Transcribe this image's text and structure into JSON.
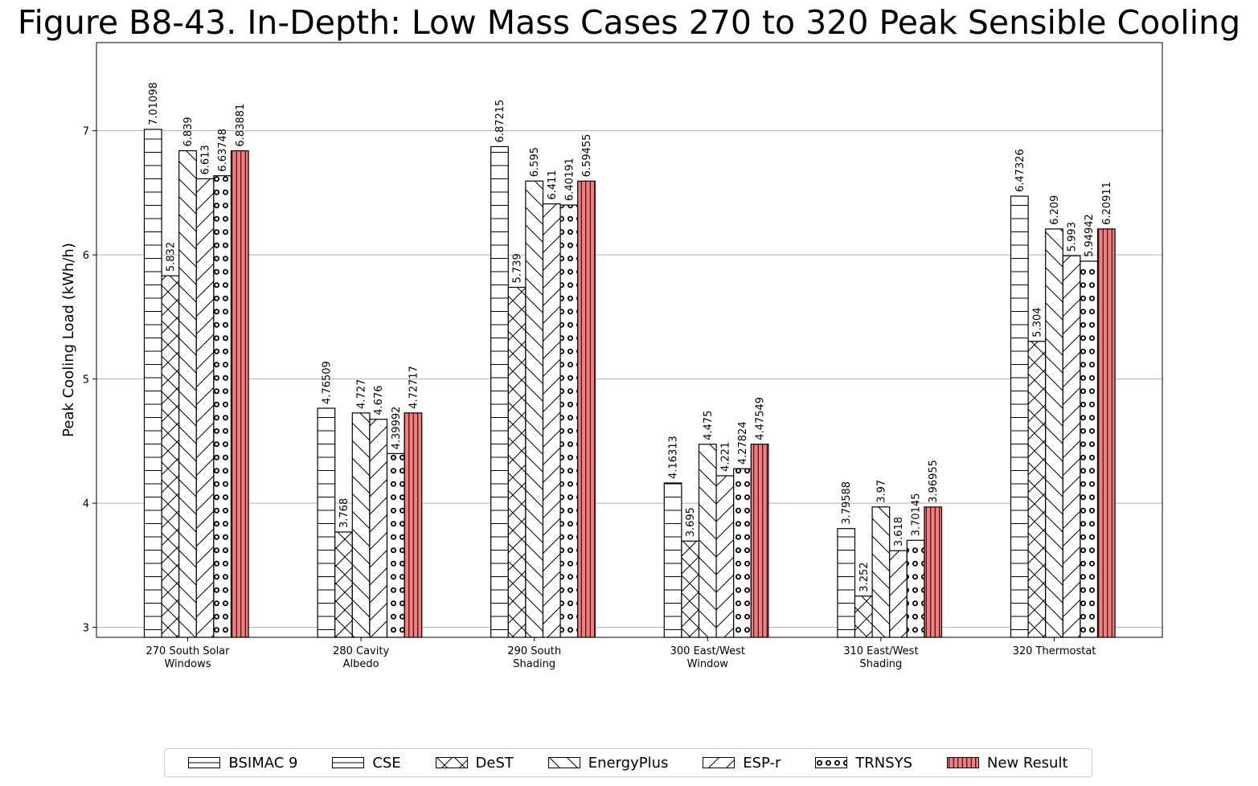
{
  "chart_data": {
    "type": "bar",
    "title": "Figure B8-43. In-Depth: Low Mass Cases 270 to 320 Peak Sensible Cooling",
    "ylabel": "Peak Cooling Load (kWh/h)",
    "xlabel": "",
    "ylim": [
      2.92,
      7.71
    ],
    "yticks": [
      "3",
      "4",
      "5",
      "6",
      "7"
    ],
    "grid": "y",
    "legend_placement": "bottom",
    "categories": [
      "270 South Solar\nWindows",
      "280 Cavity\nAlbedo",
      "290 South\nShading",
      "300 East/West\nWindow",
      "310 East/West\nShading",
      "320 Thermostat"
    ],
    "series": [
      {
        "name": "BSIMAC 9",
        "hatch": "horizontal",
        "color": "#ffffff",
        "values": [
          null,
          null,
          null,
          null,
          null,
          null
        ],
        "labels": [
          "",
          "",
          "",
          "",
          "",
          ""
        ]
      },
      {
        "name": "CSE",
        "hatch": "horizontal",
        "color": "#ffffff",
        "values": [
          7.01098,
          4.76509,
          6.87215,
          4.16313,
          3.79588,
          6.47326
        ],
        "labels": [
          "7.01098",
          "4.76509",
          "6.87215",
          "4.16313",
          "3.79588",
          "6.47326"
        ]
      },
      {
        "name": "DeST",
        "hatch": "cross",
        "color": "#ffffff",
        "values": [
          5.832,
          3.768,
          5.739,
          3.695,
          3.252,
          5.304
        ],
        "labels": [
          "5.832",
          "3.768",
          "5.739",
          "3.695",
          "3.252",
          "5.304"
        ]
      },
      {
        "name": "EnergyPlus",
        "hatch": "backslash",
        "color": "#ffffff",
        "values": [
          6.839,
          4.727,
          6.595,
          4.475,
          3.97,
          6.209
        ],
        "labels": [
          "6.839",
          "4.727",
          "6.595",
          "4.475",
          "3.97",
          "6.209"
        ]
      },
      {
        "name": "ESP-r",
        "hatch": "slash",
        "color": "#ffffff",
        "values": [
          6.613,
          4.676,
          6.411,
          4.221,
          3.618,
          5.993
        ],
        "labels": [
          "6.613",
          "4.676",
          "6.411",
          "4.221",
          "3.618",
          "5.993"
        ]
      },
      {
        "name": "TRNSYS",
        "hatch": "circles",
        "color": "#ffffff",
        "values": [
          6.63748,
          4.39992,
          6.40191,
          4.27824,
          3.70145,
          5.94942
        ],
        "labels": [
          "6.63748",
          "4.39992",
          "6.40191",
          "4.27824",
          "3.70145",
          "5.94942"
        ]
      },
      {
        "name": "New Result",
        "hatch": "vertical",
        "color": "#f47c7c",
        "values": [
          6.83881,
          4.72717,
          6.59455,
          4.47549,
          3.96955,
          6.20911
        ],
        "labels": [
          "6.83881",
          "4.72717",
          "6.59455",
          "4.47549",
          "3.96955",
          "6.20911"
        ]
      }
    ]
  }
}
